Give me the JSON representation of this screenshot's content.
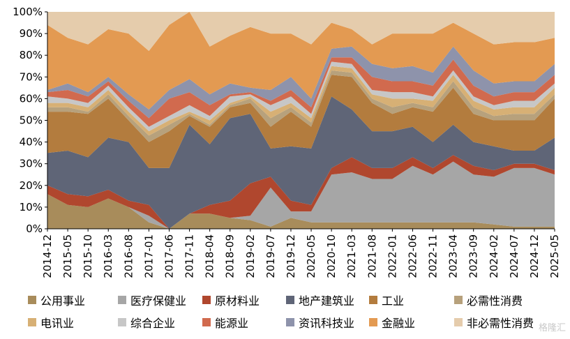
{
  "chart_data": {
    "type": "area",
    "stacked": true,
    "normalized": true,
    "title": "",
    "xlabel": "",
    "ylabel": "",
    "ylim": [
      0,
      100
    ],
    "y_ticks": [
      "0%",
      "10%",
      "20%",
      "30%",
      "40%",
      "50%",
      "60%",
      "70%",
      "80%",
      "90%",
      "100%"
    ],
    "x_ticks": [
      "2014-12",
      "2015-05",
      "2015-10",
      "2016-03",
      "2016-08",
      "2017-01",
      "2017-06",
      "2017-11",
      "2018-04",
      "2018-09",
      "2019-02",
      "2019-07",
      "2019-12",
      "2020-05",
      "2020-10",
      "2021-03",
      "2021-08",
      "2022-01",
      "2022-06",
      "2022-11",
      "2023-04",
      "2023-09",
      "2024-02",
      "2024-07",
      "2024-12",
      "2025-05"
    ],
    "series": [
      {
        "name": "公用事业",
        "color": "#a88c5b",
        "values": [
          16,
          11,
          10,
          14,
          10,
          3,
          0,
          7,
          7,
          5,
          4,
          1,
          5,
          3,
          3,
          3,
          3,
          3,
          3,
          3,
          3,
          3,
          2,
          1,
          1,
          1
        ]
      },
      {
        "name": "医疗保健业",
        "color": "#a6a6a6",
        "values": [
          0,
          0,
          0,
          0,
          0,
          3,
          0,
          0,
          0,
          0,
          2,
          18,
          3,
          5,
          22,
          23,
          20,
          20,
          26,
          22,
          28,
          22,
          22,
          27,
          27,
          24
        ]
      },
      {
        "name": "原材料业",
        "color": "#b0472e",
        "values": [
          4,
          5,
          5,
          4,
          3,
          5,
          0,
          0,
          4,
          8,
          15,
          5,
          5,
          3,
          3,
          7,
          5,
          5,
          4,
          3,
          3,
          4,
          3,
          2,
          2,
          2
        ]
      },
      {
        "name": "地产建筑业",
        "color": "#5f6577",
        "values": [
          15,
          20,
          18,
          24,
          27,
          17,
          28,
          41,
          28,
          38,
          32,
          13,
          25,
          26,
          33,
          22,
          17,
          17,
          14,
          12,
          14,
          11,
          11,
          6,
          6,
          15
        ]
      },
      {
        "name": "工业",
        "color": "#b37c3e",
        "values": [
          19,
          18,
          20,
          18,
          10,
          12,
          17,
          4,
          8,
          5,
          5,
          10,
          16,
          10,
          10,
          15,
          13,
          8,
          9,
          14,
          17,
          13,
          12,
          14,
          14,
          18
        ]
      },
      {
        "name": "必需性消费",
        "color": "#b7a17c",
        "values": [
          2,
          2,
          1,
          2,
          2,
          3,
          3,
          1,
          1,
          1,
          2,
          4,
          2,
          2,
          2,
          2,
          2,
          3,
          2,
          2,
          3,
          3,
          2,
          3,
          3,
          2
        ]
      },
      {
        "name": "电讯业",
        "color": "#d7b075",
        "values": [
          2,
          2,
          2,
          2,
          2,
          2,
          2,
          1,
          2,
          1,
          1,
          3,
          2,
          2,
          2,
          2,
          2,
          4,
          2,
          3,
          3,
          3,
          3,
          3,
          3,
          3
        ]
      },
      {
        "name": "综合企业",
        "color": "#c7c7c7",
        "values": [
          3,
          2,
          2,
          2,
          2,
          2,
          2,
          3,
          2,
          3,
          1,
          3,
          3,
          2,
          2,
          2,
          2,
          3,
          3,
          2,
          2,
          2,
          2,
          3,
          3,
          2
        ]
      },
      {
        "name": "能源业",
        "color": "#d16a4e",
        "values": [
          2,
          4,
          3,
          2,
          3,
          4,
          8,
          6,
          5,
          1,
          1,
          2,
          3,
          3,
          2,
          3,
          6,
          5,
          5,
          5,
          5,
          5,
          4,
          4,
          4,
          4
        ]
      },
      {
        "name": "资讯科技业",
        "color": "#8e93ab",
        "values": [
          1,
          3,
          2,
          2,
          3,
          4,
          4,
          6,
          5,
          5,
          2,
          5,
          6,
          4,
          4,
          5,
          6,
          6,
          7,
          6,
          6,
          7,
          6,
          5,
          5,
          5
        ]
      },
      {
        "name": "金融业",
        "color": "#e39a52",
        "values": [
          30,
          21,
          22,
          22,
          28,
          27,
          30,
          31,
          22,
          22,
          28,
          26,
          20,
          25,
          12,
          8,
          9,
          16,
          15,
          18,
          11,
          17,
          18,
          18,
          18,
          12
        ]
      },
      {
        "name": "非必需性消费",
        "color": "#e5ccac",
        "values": [
          6,
          12,
          15,
          8,
          10,
          18,
          6,
          0,
          16,
          11,
          7,
          10,
          10,
          15,
          5,
          8,
          15,
          10,
          10,
          10,
          5,
          10,
          15,
          14,
          14,
          12
        ]
      }
    ]
  },
  "watermark": "格隆汇"
}
